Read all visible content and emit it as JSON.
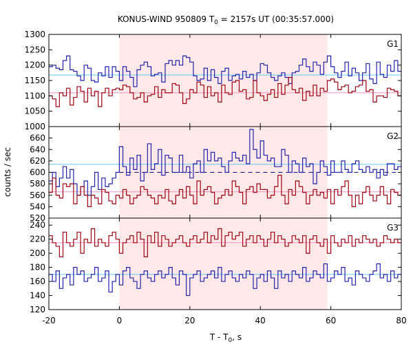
{
  "chart_data": {
    "type": "line",
    "title_parts": {
      "pre": "KONUS-WIND 950809 T",
      "sub": "0",
      "post": " = 2157s UT (00:35:57.000)"
    },
    "xlabel_parts": {
      "pre": "T - T",
      "sub": "0",
      "post": ", s"
    },
    "ylabel": "counts / sec",
    "xlim": [
      -20,
      80
    ],
    "x_ticks": [
      "-20",
      "0",
      "20",
      "40",
      "60",
      "80"
    ],
    "x_tick_values": [
      -20,
      0,
      20,
      40,
      60,
      80
    ],
    "highlight_interval": [
      0,
      59
    ],
    "colors": {
      "highlight": "#ffe8e8",
      "high_series": "#2020b0",
      "low_series": "#a00010",
      "high_background": "#5cc8f0",
      "low_background": "#f090c0",
      "dashed_level": "#00007a"
    },
    "bin_start": -20,
    "bin_width": 1.0,
    "panels": [
      {
        "label": "G1",
        "ylim": [
          1000,
          1300
        ],
        "y_ticks": [
          "1000",
          "1050",
          "1100",
          "1150",
          "1200",
          "1250",
          "1300"
        ],
        "y_tick_values": [
          1000,
          1050,
          1100,
          1150,
          1200,
          1250,
          1300
        ],
        "series": [
          {
            "color": "blue",
            "background_level": 1168,
            "values": [
              1195,
              1200,
              1190,
              1185,
              1215,
              1230,
              1185,
              1180,
              1165,
              1150,
              1200,
              1190,
              1150,
              1145,
              1175,
              1165,
              1195,
              1160,
              1195,
              1180,
              1150,
              1195,
              1180,
              1160,
              1130,
              1185,
              1200,
              1210,
              1195,
              1165,
              1170,
              1175,
              1145,
              1205,
              1215,
              1200,
              1215,
              1200,
              1230,
              1225,
              1210,
              1165,
              1150,
              1155,
              1190,
              1150,
              1185,
              1160,
              1140,
              1180,
              1190,
              1150,
              1165,
              1170,
              1155,
              1180,
              1160,
              1170,
              1150,
              1175,
              1205,
              1200,
              1175,
              1160,
              1150,
              1165,
              1175,
              1160,
              1140,
              1175,
              1180,
              1200,
              1220,
              1195,
              1180,
              1210,
              1200,
              1170,
              1210,
              1230,
              1195,
              1175,
              1160,
              1180,
              1210,
              1165,
              1190,
              1175,
              1150,
              1175,
              1205,
              1155,
              1140,
              1210,
              1170,
              1160,
              1200,
              1180,
              1215,
              1180
            ]
          },
          {
            "color": "red",
            "background_level": 1110,
            "values": [
              1100,
              1090,
              1065,
              1110,
              1100,
              1125,
              1070,
              1095,
              1130,
              1115,
              1080,
              1125,
              1100,
              1115,
              1065,
              1110,
              1125,
              1100,
              1120,
              1125,
              1120,
              1135,
              1130,
              1110,
              1090,
              1095,
              1110,
              1080,
              1100,
              1105,
              1130,
              1095,
              1120,
              1110,
              1110,
              1140,
              1135,
              1110,
              1075,
              1090,
              1120,
              1110,
              1145,
              1135,
              1095,
              1130,
              1100,
              1110,
              1080,
              1135,
              1110,
              1105,
              1145,
              1150,
              1115,
              1120,
              1090,
              1095,
              1150,
              1110,
              1100,
              1085,
              1105,
              1120,
              1095,
              1140,
              1105,
              1135,
              1160,
              1120,
              1110,
              1125,
              1085,
              1115,
              1100,
              1135,
              1100,
              1125,
              1115,
              1150,
              1155,
              1145,
              1120,
              1130,
              1135,
              1110,
              1115,
              1130,
              1135,
              1150,
              1115,
              1120,
              1080,
              1100,
              1100,
              1095,
              1125,
              1120,
              1115,
              1100
            ]
          }
        ],
        "dashed_level": null
      },
      {
        "label": "G2",
        "ylim": [
          520,
          680
        ],
        "y_ticks": [
          "520",
          "540",
          "560",
          "580",
          "600",
          "620",
          "640",
          "660"
        ],
        "y_tick_values": [
          520,
          540,
          560,
          580,
          600,
          620,
          640,
          660
        ],
        "series": [
          {
            "color": "blue",
            "background_level": 614,
            "values": [
              585,
              600,
              575,
              590,
              610,
              590,
              605,
              580,
              560,
              575,
              585,
              560,
              575,
              600,
              570,
              590,
              575,
              580,
              590,
              600,
              645,
              610,
              595,
              625,
              605,
              630,
              585,
              600,
              650,
              605,
              615,
              640,
              595,
              630,
              625,
              600,
              600,
              630,
              600,
              610,
              590,
              615,
              620,
              600,
              640,
              620,
              635,
              620,
              625,
              610,
              600,
              620,
              635,
              625,
              620,
              630,
              615,
              675,
              640,
              625,
              655,
              630,
              620,
              625,
              610,
              610,
              640,
              630,
              600,
              620,
              615,
              600,
              625,
              610,
              615,
              580,
              600,
              620,
              610,
              595,
              620,
              600,
              600,
              620,
              605,
              600,
              615,
              620,
              605,
              600,
              610,
              600,
              605,
              590,
              605,
              595,
              615,
              615,
              605,
              610
            ]
          },
          {
            "color": "red",
            "background_level": 566,
            "values": [
              565,
              590,
              560,
              555,
              580,
              575,
              580,
              545,
              560,
              575,
              560,
              540,
              560,
              555,
              545,
              570,
              565,
              550,
              545,
              560,
              555,
              570,
              560,
              545,
              555,
              560,
              575,
              570,
              560,
              555,
              545,
              560,
              555,
              570,
              550,
              545,
              560,
              570,
              555,
              575,
              560,
              545,
              585,
              560,
              570,
              575,
              565,
              545,
              555,
              560,
              570,
              560,
              585,
              575,
              565,
              545,
              570,
              575,
              565,
              580,
              570,
              570,
              555,
              560,
              575,
              595,
              560,
              545,
              570,
              560,
              585,
              575,
              565,
              545,
              560,
              570,
              560,
              565,
              555,
              570,
              545,
              570,
              560,
              575,
              585,
              560,
              540,
              560,
              545,
              565,
              575,
              560,
              550,
              560,
              575,
              560,
              545,
              570,
              565,
              560
            ]
          }
        ],
        "dashed_level": 600
      },
      {
        "label": "G3",
        "ylim": [
          120,
          250
        ],
        "y_ticks": [
          "120",
          "140",
          "160",
          "180",
          "200",
          "220",
          "240"
        ],
        "y_tick_values": [
          120,
          140,
          160,
          180,
          200,
          220,
          240
        ],
        "series": [
          {
            "color": "red",
            "background_level": 215,
            "values": [
              225,
              215,
              210,
              195,
              230,
              215,
              210,
              220,
              230,
              200,
              220,
              215,
              235,
              210,
              220,
              215,
              210,
              225,
              230,
              220,
              200,
              215,
              220,
              225,
              215,
              230,
              220,
              195,
              225,
              215,
              230,
              210,
              225,
              220,
              210,
              215,
              220,
              225,
              215,
              210,
              220,
              225,
              215,
              220,
              230,
              215,
              225,
              220,
              235,
              210,
              225,
              230,
              220,
              225,
              230,
              210,
              220,
              225,
              215,
              225,
              220,
              210,
              220,
              230,
              215,
              225,
              220,
              210,
              215,
              225,
              220,
              215,
              225,
              200,
              220,
              225,
              215,
              210,
              220,
              200,
              225,
              215,
              210,
              220,
              215,
              225,
              210,
              220,
              215,
              225,
              220,
              215,
              220,
              210,
              215,
              225,
              220,
              215,
              220,
              215
            ]
          },
          {
            "color": "blue",
            "background_level": 170,
            "values": [
              170,
              160,
              175,
              150,
              165,
              170,
              155,
              180,
              170,
              175,
              160,
              165,
              170,
              180,
              160,
              165,
              175,
              145,
              160,
              170,
              155,
              175,
              180,
              165,
              160,
              150,
              170,
              175,
              165,
              160,
              170,
              175,
              165,
              170,
              180,
              165,
              155,
              175,
              170,
              140,
              165,
              170,
              175,
              160,
              165,
              170,
              175,
              165,
              180,
              160,
              170,
              175,
              165,
              160,
              170,
              165,
              175,
              170,
              150,
              165,
              170,
              160,
              175,
              165,
              150,
              175,
              165,
              170,
              160,
              175,
              170,
              165,
              180,
              160,
              165,
              175,
              170,
              165,
              185,
              160,
              165,
              175,
              170,
              180,
              160,
              165,
              155,
              175,
              170,
              165,
              160,
              170,
              175,
              185,
              165,
              170,
              160,
              175,
              165,
              170
            ]
          }
        ],
        "dashed_level": null
      }
    ]
  }
}
